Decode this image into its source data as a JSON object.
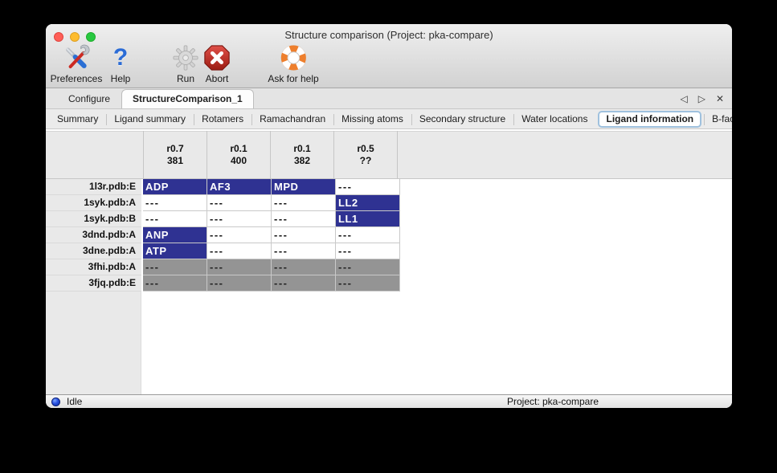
{
  "window_title": "Structure comparison (Project: pka-compare)",
  "toolbar": {
    "items": [
      {
        "label": "Preferences",
        "icon": "tools-icon"
      },
      {
        "label": "Help",
        "icon": "question-mark-icon"
      },
      {
        "label": "Run",
        "icon": "gear-icon"
      },
      {
        "label": "Abort",
        "icon": "stop-icon"
      },
      {
        "label": "Ask for help",
        "icon": "lifebuoy-icon"
      }
    ]
  },
  "tabs": {
    "items": [
      {
        "label": "Configure",
        "selected": false
      },
      {
        "label": "StructureComparison_1",
        "selected": true
      }
    ],
    "prev_glyph": "◁",
    "next_glyph": "▷",
    "close_glyph": "✕"
  },
  "subtabs": {
    "items": [
      "Summary",
      "Ligand summary",
      "Rotamers",
      "Ramachandran",
      "Missing atoms",
      "Secondary structure",
      "Water locations",
      "Ligand information",
      "B-factors"
    ],
    "selected": "Ligand information",
    "prev_glyph": "◁",
    "next_glyph": "▷"
  },
  "ligand_table": {
    "columns": [
      {
        "line1": "r0.7",
        "line2": "381"
      },
      {
        "line1": "r0.1",
        "line2": "400"
      },
      {
        "line1": "r0.1",
        "line2": "382"
      },
      {
        "line1": "r0.5",
        "line2": "??"
      }
    ],
    "rows": [
      {
        "label": "1l3r.pdb:E",
        "cells": [
          {
            "text": "ADP",
            "state": "ligand"
          },
          {
            "text": "AF3",
            "state": "ligand"
          },
          {
            "text": "MPD",
            "state": "ligand"
          },
          {
            "text": "---",
            "state": "none"
          }
        ]
      },
      {
        "label": "1syk.pdb:A",
        "cells": [
          {
            "text": "---",
            "state": "none"
          },
          {
            "text": "---",
            "state": "none"
          },
          {
            "text": "---",
            "state": "none"
          },
          {
            "text": "LL2",
            "state": "ligand"
          }
        ]
      },
      {
        "label": "1syk.pdb:B",
        "cells": [
          {
            "text": "---",
            "state": "none"
          },
          {
            "text": "---",
            "state": "none"
          },
          {
            "text": "---",
            "state": "none"
          },
          {
            "text": "LL1",
            "state": "ligand"
          }
        ]
      },
      {
        "label": "3dnd.pdb:A",
        "cells": [
          {
            "text": "ANP",
            "state": "ligand"
          },
          {
            "text": "---",
            "state": "none"
          },
          {
            "text": "---",
            "state": "none"
          },
          {
            "text": "---",
            "state": "none"
          }
        ]
      },
      {
        "label": "3dne.pdb:A",
        "cells": [
          {
            "text": "ATP",
            "state": "ligand"
          },
          {
            "text": "---",
            "state": "none"
          },
          {
            "text": "---",
            "state": "none"
          },
          {
            "text": "---",
            "state": "none"
          }
        ]
      },
      {
        "label": "3fhi.pdb:A",
        "cells": [
          {
            "text": "---",
            "state": "na"
          },
          {
            "text": "---",
            "state": "na"
          },
          {
            "text": "---",
            "state": "na"
          },
          {
            "text": "---",
            "state": "na"
          }
        ]
      },
      {
        "label": "3fjq.pdb:E",
        "cells": [
          {
            "text": "---",
            "state": "na"
          },
          {
            "text": "---",
            "state": "na"
          },
          {
            "text": "---",
            "state": "na"
          },
          {
            "text": "---",
            "state": "na"
          }
        ]
      }
    ]
  },
  "statusbar": {
    "status": "Idle",
    "project": "Project: pka-compare"
  },
  "colors": {
    "ligand_selected_blue": "#2f3292",
    "not_applicable_gray": "#949494",
    "header_gray": "#e9e9e9",
    "selected_subtab_border": "#9fc1de",
    "traffic_red": "#ff5f57",
    "traffic_yellow": "#febc2e",
    "traffic_green": "#28c840"
  }
}
